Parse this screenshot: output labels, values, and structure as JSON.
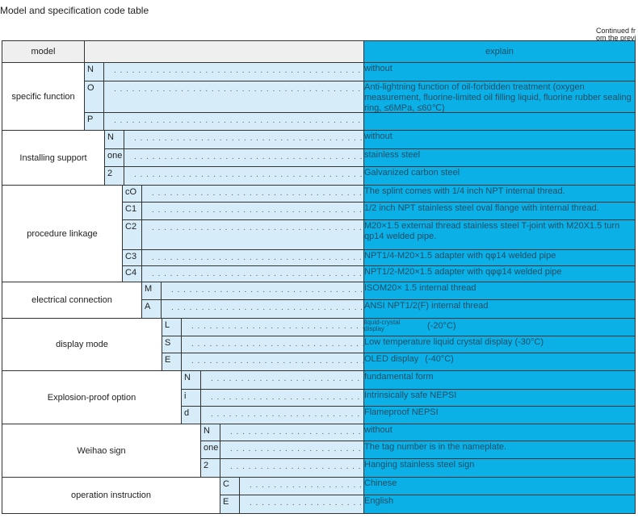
{
  "title": "Model and specification code table",
  "continued": "Continued from the previ",
  "header": {
    "model": "model",
    "code": "",
    "explain": "explain"
  },
  "colors": {
    "explain_bg": "#0bb0e6",
    "code_bg": "#d6edf9"
  },
  "groups": [
    {
      "label": "specific function",
      "rows": [
        {
          "code": "N",
          "explain": "without"
        },
        {
          "code": "O",
          "explain": "Anti-lightning function of oil-forbidden treatment (oxygen measurement, fluorine-limited oil filling liquid, fluorine rubber sealing ring, ≤6MPa, ≤60℃)"
        },
        {
          "code": "P",
          "explain": ""
        }
      ]
    },
    {
      "label": "Installing support",
      "rows": [
        {
          "code": "N",
          "explain": "without"
        },
        {
          "code": "one",
          "explain": "stainless steel"
        },
        {
          "code": "2",
          "explain": "Galvanized carbon steel"
        }
      ]
    },
    {
      "label": "procedure linkage",
      "rows": [
        {
          "code": "cO",
          "explain": "The splint comes with 1/4 inch NPT internal thread."
        },
        {
          "code": "C1",
          "explain": "1/2 inch NPT stainless steel oval flange with internal thread."
        },
        {
          "code": "C2",
          "explain": "M20×1.5 external thread stainless steel T-joint with M20X1.5 turn qp14 welded pipe."
        },
        {
          "code": "C3",
          "explain": "NPT1/4-M20×1.5 adapter with qφ14 welded pipe"
        },
        {
          "code": "C4",
          "explain": "NPT1/2-M20×1.5 adapter with qφφ14 welded pipe"
        }
      ]
    },
    {
      "label": "electrical connection",
      "rows": [
        {
          "code": "M",
          "explain": "ISOM20× 1.5 internal thread"
        },
        {
          "code": "A",
          "explain": "ANSI NPT1/2(F) internal thread"
        }
      ]
    },
    {
      "label": "display mode",
      "rows": [
        {
          "code": "L",
          "explain": "liquid-crystal display",
          "note": "(-20°C)"
        },
        {
          "code": "S",
          "explain": "Low temperature liquid crystal display (-30°C)"
        },
        {
          "code": "E",
          "explain": "OLED display",
          "note": "(-40°C)"
        }
      ]
    },
    {
      "label": "Explosion-proof option",
      "rows": [
        {
          "code": "N",
          "explain": "fundamental form"
        },
        {
          "code": "i",
          "explain": "Intrinsically safe NEPSI"
        },
        {
          "code": "d",
          "explain": "Flameproof NEPSI"
        }
      ]
    },
    {
      "label": "Weihao sign",
      "rows": [
        {
          "code": "N",
          "explain": "without"
        },
        {
          "code": "one",
          "explain": "The tag number is in the nameplate."
        },
        {
          "code": "2",
          "explain": "Hanging stainless steel sign"
        }
      ]
    },
    {
      "label": "operation instruction",
      "rows": [
        {
          "code": "C",
          "explain": "Chinese"
        },
        {
          "code": "E",
          "explain": "English"
        }
      ]
    }
  ]
}
